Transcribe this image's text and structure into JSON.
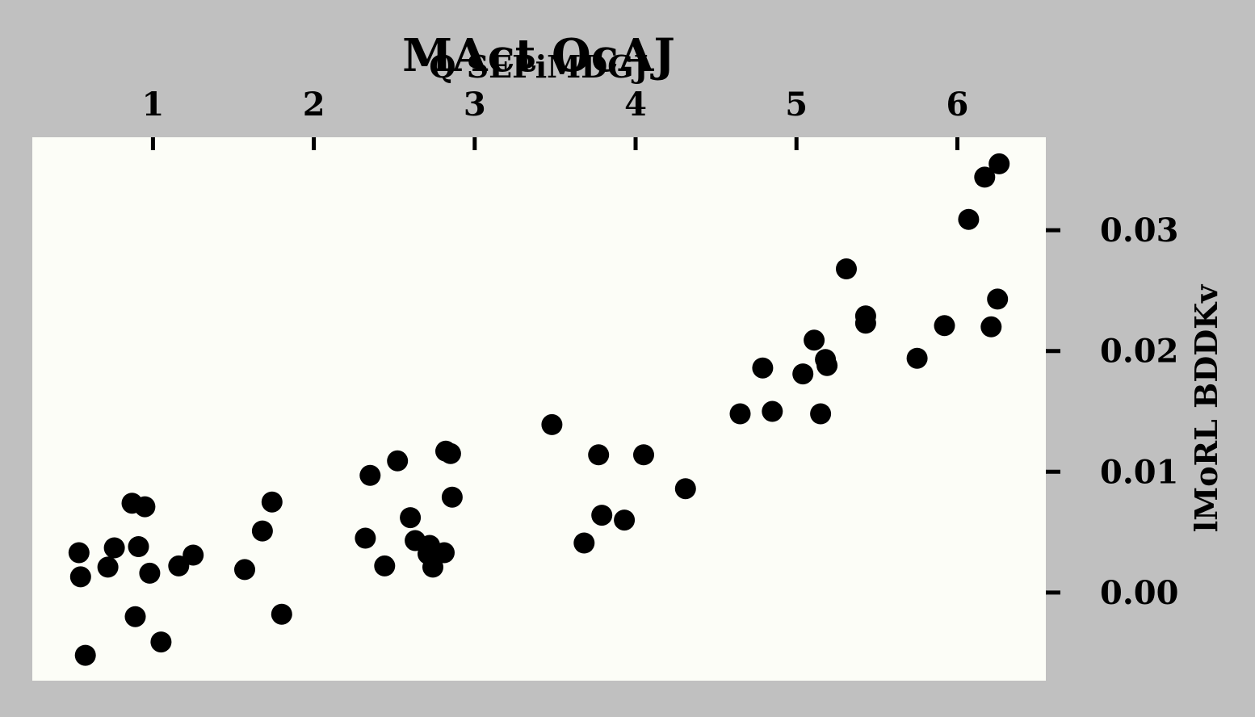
{
  "chart_data": {
    "type": "scatter",
    "title": "MAct OcAJ",
    "xlabel": "Q SEPiMDGJ",
    "ylabel": "lMoRL BDDKv",
    "xlim": [
      0.25,
      6.55
    ],
    "ylim": [
      -0.0073,
      0.0377
    ],
    "x_ticks": [
      1,
      2,
      3,
      4,
      5,
      6
    ],
    "x_tick_labels": [
      "1",
      "2",
      "3",
      "4",
      "5",
      "6"
    ],
    "y_ticks": [
      0.0,
      0.01,
      0.02,
      0.03
    ],
    "y_tick_labels": [
      "0.00",
      "0.01",
      "0.02",
      "0.03"
    ],
    "x_axis_position": "top",
    "y_axis_position": "right",
    "grid": false,
    "legend": "none",
    "colors": {
      "figure_background": "#c0c0c0",
      "plot_background": "#fcfdf7",
      "marker": "#000000"
    },
    "points": [
      {
        "x": 0.54,
        "y": 0.0033
      },
      {
        "x": 0.55,
        "y": 0.0013
      },
      {
        "x": 0.58,
        "y": -0.0052
      },
      {
        "x": 0.72,
        "y": 0.0021
      },
      {
        "x": 0.76,
        "y": 0.0037
      },
      {
        "x": 0.87,
        "y": 0.0074
      },
      {
        "x": 0.89,
        "y": -0.002
      },
      {
        "x": 0.91,
        "y": 0.0038
      },
      {
        "x": 0.95,
        "y": 0.0071
      },
      {
        "x": 0.98,
        "y": 0.0016
      },
      {
        "x": 1.05,
        "y": -0.0041
      },
      {
        "x": 1.16,
        "y": 0.0022
      },
      {
        "x": 1.25,
        "y": 0.0031
      },
      {
        "x": 1.57,
        "y": 0.0019
      },
      {
        "x": 1.68,
        "y": 0.0051
      },
      {
        "x": 1.74,
        "y": 0.0075
      },
      {
        "x": 1.8,
        "y": -0.0018
      },
      {
        "x": 2.32,
        "y": 0.0045
      },
      {
        "x": 2.35,
        "y": 0.0097
      },
      {
        "x": 2.44,
        "y": 0.0022
      },
      {
        "x": 2.52,
        "y": 0.0109
      },
      {
        "x": 2.6,
        "y": 0.0062
      },
      {
        "x": 2.63,
        "y": 0.0043
      },
      {
        "x": 2.71,
        "y": 0.0032
      },
      {
        "x": 2.72,
        "y": 0.0039
      },
      {
        "x": 2.74,
        "y": 0.0021
      },
      {
        "x": 2.81,
        "y": 0.0033
      },
      {
        "x": 2.82,
        "y": 0.0117
      },
      {
        "x": 2.85,
        "y": 0.0115
      },
      {
        "x": 2.86,
        "y": 0.0079
      },
      {
        "x": 3.48,
        "y": 0.0139
      },
      {
        "x": 3.68,
        "y": 0.0041
      },
      {
        "x": 3.77,
        "y": 0.0114
      },
      {
        "x": 3.79,
        "y": 0.0064
      },
      {
        "x": 3.93,
        "y": 0.006
      },
      {
        "x": 4.05,
        "y": 0.0114
      },
      {
        "x": 4.31,
        "y": 0.0086
      },
      {
        "x": 4.65,
        "y": 0.0148
      },
      {
        "x": 4.79,
        "y": 0.0186
      },
      {
        "x": 4.85,
        "y": 0.015
      },
      {
        "x": 5.04,
        "y": 0.0181
      },
      {
        "x": 5.11,
        "y": 0.0209
      },
      {
        "x": 5.15,
        "y": 0.0148
      },
      {
        "x": 5.18,
        "y": 0.0193
      },
      {
        "x": 5.19,
        "y": 0.0188
      },
      {
        "x": 5.31,
        "y": 0.0268
      },
      {
        "x": 5.43,
        "y": 0.0223
      },
      {
        "x": 5.43,
        "y": 0.0229
      },
      {
        "x": 5.75,
        "y": 0.0194
      },
      {
        "x": 5.92,
        "y": 0.0221
      },
      {
        "x": 6.07,
        "y": 0.0309
      },
      {
        "x": 6.17,
        "y": 0.0344
      },
      {
        "x": 6.21,
        "y": 0.022
      },
      {
        "x": 6.25,
        "y": 0.0243
      },
      {
        "x": 6.26,
        "y": 0.0355
      }
    ]
  }
}
